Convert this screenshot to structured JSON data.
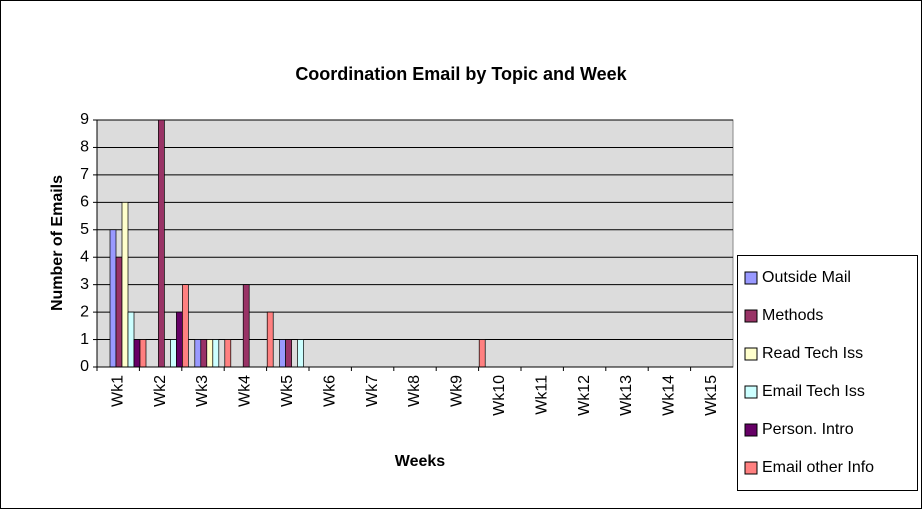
{
  "chart_data": {
    "type": "bar",
    "title": "Coordination Email by Topic and Week",
    "x_label": "Weeks",
    "y_label": "Number of Emails",
    "categories": [
      "Wk1",
      "Wk2",
      "Wk3",
      "Wk4",
      "Wk5",
      "Wk6",
      "Wk7",
      "Wk8",
      "Wk9",
      "Wk10",
      "Wk11",
      "Wk12",
      "Wk13",
      "Wk14",
      "Wk15"
    ],
    "series": [
      {
        "name": "Outside Mail",
        "color": "#9999ff",
        "values": [
          5,
          0,
          1,
          0,
          1,
          0,
          0,
          0,
          0,
          0,
          0,
          0,
          0,
          0,
          0
        ]
      },
      {
        "name": "Methods",
        "color": "#993366",
        "values": [
          4,
          9,
          1,
          3,
          1,
          0,
          0,
          0,
          0,
          0,
          0,
          0,
          0,
          0,
          0
        ]
      },
      {
        "name": "Read Tech Iss",
        "color": "#ffffcc",
        "values": [
          6,
          0,
          1,
          0,
          0,
          0,
          0,
          0,
          0,
          0,
          0,
          0,
          0,
          0,
          0
        ]
      },
      {
        "name": "Email Tech Iss",
        "color": "#ccffff",
        "values": [
          2,
          1,
          1,
          0,
          1,
          0,
          0,
          0,
          0,
          0,
          0,
          0,
          0,
          0,
          0
        ]
      },
      {
        "name": "Person. Intro",
        "color": "#660066",
        "values": [
          1,
          2,
          0,
          0,
          0,
          0,
          0,
          0,
          0,
          0,
          0,
          0,
          0,
          0,
          0
        ]
      },
      {
        "name": "Email other Info",
        "color": "#ff8080",
        "values": [
          1,
          3,
          1,
          2,
          0,
          0,
          0,
          0,
          1,
          0,
          0,
          0,
          0,
          0,
          0
        ]
      }
    ],
    "ylim": [
      0,
      9
    ],
    "yticks": [
      0,
      1,
      2,
      3,
      4,
      5,
      6,
      7,
      8,
      9
    ],
    "grid": true,
    "legend": "right"
  }
}
